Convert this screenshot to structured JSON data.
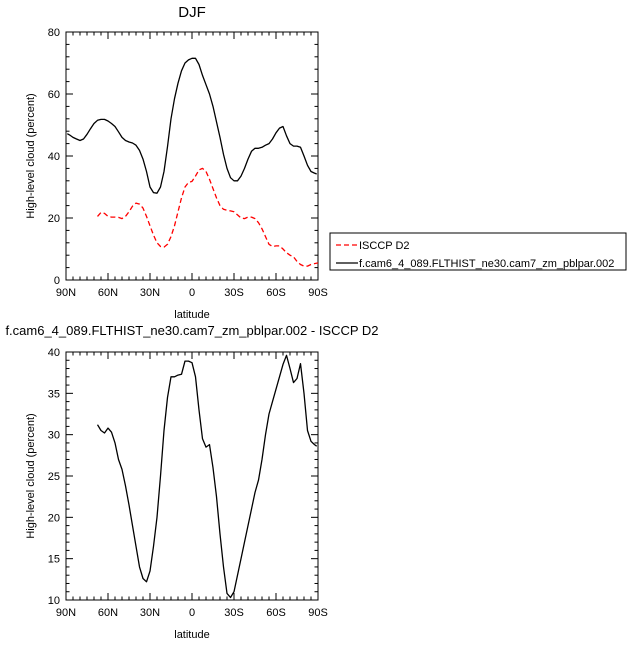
{
  "chart_data": [
    {
      "type": "line",
      "title": "DJF",
      "xlabel": "latitude",
      "ylabel": "High-level cloud (percent)",
      "xlim": [
        90,
        -90
      ],
      "ylim": [
        0,
        80
      ],
      "x_ticks": [
        90,
        60,
        30,
        0,
        -30,
        -60,
        -90
      ],
      "x_tick_labels": [
        "90N",
        "60N",
        "30N",
        "0",
        "30S",
        "60S",
        "90S"
      ],
      "y_ticks": [
        0,
        20,
        40,
        60,
        80
      ],
      "y_tick_labels": [
        "0",
        "20",
        "40",
        "60",
        "80"
      ],
      "legend_position": "right",
      "series": [
        {
          "name": "ISCCP D2",
          "color": "#ff0000",
          "dash": true,
          "x": [
            67.5,
            65,
            62.5,
            60,
            57.5,
            55,
            52.5,
            50,
            47.5,
            45,
            42.5,
            40,
            37.5,
            35,
            32.5,
            30,
            27.5,
            25,
            22.5,
            20,
            17.5,
            15,
            12.5,
            10,
            7.5,
            5,
            2.5,
            0,
            -2.5,
            -5,
            -7.5,
            -10,
            -12.5,
            -15,
            -17.5,
            -20,
            -22.5,
            -25,
            -27.5,
            -30,
            -32.5,
            -35,
            -37.5,
            -40,
            -42.5,
            -45,
            -47.5,
            -50,
            -52.5,
            -55,
            -57.5,
            -60,
            -62.5,
            -65,
            -67.5,
            -70,
            -72.5,
            -75,
            -77.5,
            -80,
            -82.5,
            -85,
            -87.5,
            -90
          ],
          "values": [
            20.5,
            21.8,
            21.5,
            20.5,
            20.3,
            20.3,
            20.2,
            19.8,
            20.5,
            22.0,
            23.8,
            24.8,
            24.5,
            23.2,
            20.5,
            17.5,
            14.5,
            12.0,
            10.8,
            10.6,
            11.5,
            14.0,
            17.5,
            22.0,
            26.5,
            30.0,
            31.5,
            31.8,
            33.5,
            35.5,
            36.0,
            35.0,
            32.5,
            29.5,
            26.5,
            24.0,
            22.8,
            22.5,
            22.3,
            22.0,
            21.0,
            20.0,
            19.8,
            20.3,
            20.3,
            19.8,
            18.5,
            16.5,
            14.0,
            11.5,
            10.8,
            11.0,
            11.0,
            10.0,
            8.8,
            8.0,
            7.5,
            6.0,
            5.0,
            4.5,
            4.5,
            5.0,
            5.3,
            5.5
          ]
        },
        {
          "name": "f.cam6_4_089.FLTHIST_ne30.cam7_zm_pblpar.002",
          "color": "#000000",
          "dash": false,
          "x": [
            89.1,
            87.5,
            85,
            82.5,
            80,
            77.5,
            75,
            72.5,
            70,
            67.5,
            65,
            62.5,
            60,
            57.5,
            55,
            52.5,
            50,
            47.5,
            45,
            42.5,
            40,
            37.5,
            35,
            32.5,
            30,
            27.5,
            25,
            22.5,
            20,
            17.5,
            15,
            12.5,
            10,
            7.5,
            5,
            2.5,
            0,
            -2.5,
            -5,
            -7.5,
            -10,
            -12.5,
            -15,
            -17.5,
            -20,
            -22.5,
            -25,
            -27.5,
            -30,
            -32.5,
            -35,
            -37.5,
            -40,
            -42.5,
            -45,
            -47.5,
            -50,
            -52.5,
            -55,
            -57.5,
            -60,
            -62.5,
            -65,
            -67.5,
            -70,
            -72.5,
            -75,
            -77.5,
            -80,
            -82.5,
            -85,
            -87.5,
            -89.1
          ],
          "values": [
            47.2,
            46.8,
            46.0,
            45.5,
            45.0,
            45.5,
            47.0,
            48.8,
            50.5,
            51.5,
            51.8,
            51.8,
            51.3,
            50.5,
            49.5,
            47.8,
            46.0,
            45.0,
            44.5,
            44.2,
            43.5,
            41.8,
            39.0,
            35.0,
            30.0,
            28.2,
            28.0,
            30.0,
            35.0,
            43.0,
            52.0,
            58.5,
            63.5,
            67.5,
            70.0,
            71.0,
            71.5,
            71.5,
            69.5,
            66.0,
            63.0,
            60.0,
            56.0,
            51.0,
            46.0,
            40.5,
            36.0,
            33.0,
            32.0,
            32.0,
            33.5,
            36.0,
            39.0,
            41.5,
            42.5,
            42.5,
            42.8,
            43.5,
            44.0,
            45.5,
            47.5,
            49.0,
            49.5,
            46.5,
            44.0,
            43.2,
            43.2,
            42.8,
            40.0,
            37.0,
            35.0,
            34.5,
            34.2
          ]
        }
      ]
    },
    {
      "type": "line",
      "title": "f.cam6_4_089.FLTHIST_ne30.cam7_zm_pblpar.002 - ISCCP D2",
      "xlabel": "latitude",
      "ylabel": "High-level cloud (percent)",
      "xlim": [
        90,
        -90
      ],
      "ylim": [
        10,
        40
      ],
      "x_ticks": [
        90,
        60,
        30,
        0,
        -30,
        -60,
        -90
      ],
      "x_tick_labels": [
        "90N",
        "60N",
        "30N",
        "0",
        "30S",
        "60S",
        "90S"
      ],
      "y_ticks": [
        10,
        15,
        20,
        25,
        30,
        35,
        40
      ],
      "y_tick_labels": [
        "10",
        "15",
        "20",
        "25",
        "30",
        "35",
        "40"
      ],
      "series": [
        {
          "color": "#000000",
          "x": [
            67.5,
            65,
            62.5,
            60,
            57.5,
            55,
            52.5,
            50,
            47.5,
            45,
            42.5,
            40,
            37.5,
            35,
            32.5,
            30,
            27.5,
            25,
            22.5,
            20,
            17.5,
            15,
            12.5,
            10,
            7.5,
            5,
            2.5,
            0,
            -2.5,
            -5,
            -7.5,
            -10,
            -12.5,
            -15,
            -17.5,
            -20,
            -22.5,
            -25,
            -27.5,
            -30,
            -32.5,
            -35,
            -37.5,
            -40,
            -42.5,
            -45,
            -47.5,
            -50,
            -52.5,
            -55,
            -57.5,
            -60,
            -62.5,
            -65,
            -67.5,
            -70,
            -72.5,
            -75,
            -77.5,
            -80,
            -82.5,
            -85,
            -87.5,
            -89.1
          ],
          "values": [
            31.2,
            30.5,
            30.2,
            30.8,
            30.3,
            29.0,
            27.0,
            25.8,
            23.8,
            21.5,
            19.0,
            16.5,
            14.0,
            12.6,
            12.2,
            13.5,
            16.5,
            20.0,
            25.0,
            30.5,
            34.5,
            37.0,
            37.0,
            37.2,
            37.3,
            38.9,
            38.9,
            38.7,
            37.0,
            33.0,
            29.5,
            28.5,
            28.8,
            26.0,
            22.5,
            18.0,
            14.0,
            10.8,
            10.3,
            11.0,
            13.0,
            15.0,
            17.0,
            19.0,
            21.0,
            23.0,
            24.5,
            27.0,
            30.0,
            32.5,
            34.0,
            35.5,
            37.0,
            38.5,
            39.6,
            38.0,
            36.3,
            36.8,
            38.6,
            35.0,
            30.5,
            29.2,
            28.8,
            28.6
          ]
        }
      ]
    }
  ]
}
